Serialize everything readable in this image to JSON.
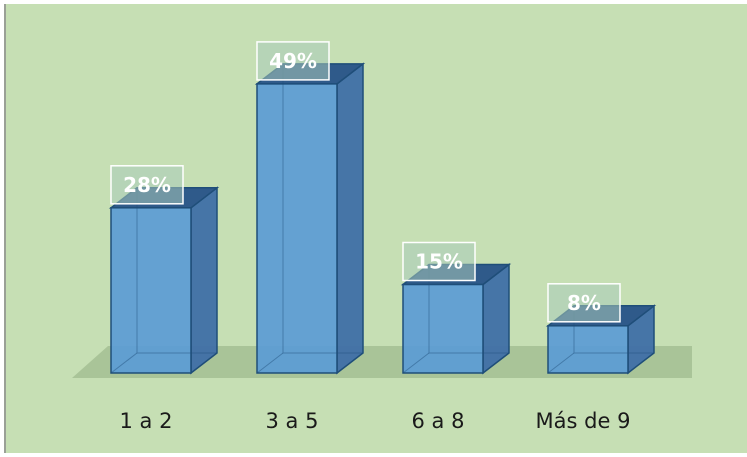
{
  "chart_data": {
    "type": "bar",
    "style": "3d-column",
    "categories": [
      "1 a 2",
      "3 a 5",
      "6 a 8",
      "Más de 9"
    ],
    "values": [
      28,
      49,
      15,
      8
    ],
    "data_labels": [
      "28%",
      "49%",
      "15%",
      "8%"
    ],
    "title": "",
    "xlabel": "",
    "ylabel": "",
    "ylim": [
      0,
      50
    ],
    "grid": false,
    "legend": "none"
  },
  "colors": {
    "background": "#c6dfb4",
    "bar_front": "#5b9bd5",
    "bar_side": "#3f6fa6",
    "bar_top": "#2f5a8a",
    "bar_edge": "#1f4e79",
    "floor": "#a9c498",
    "label_box": "#a9cbb9"
  }
}
